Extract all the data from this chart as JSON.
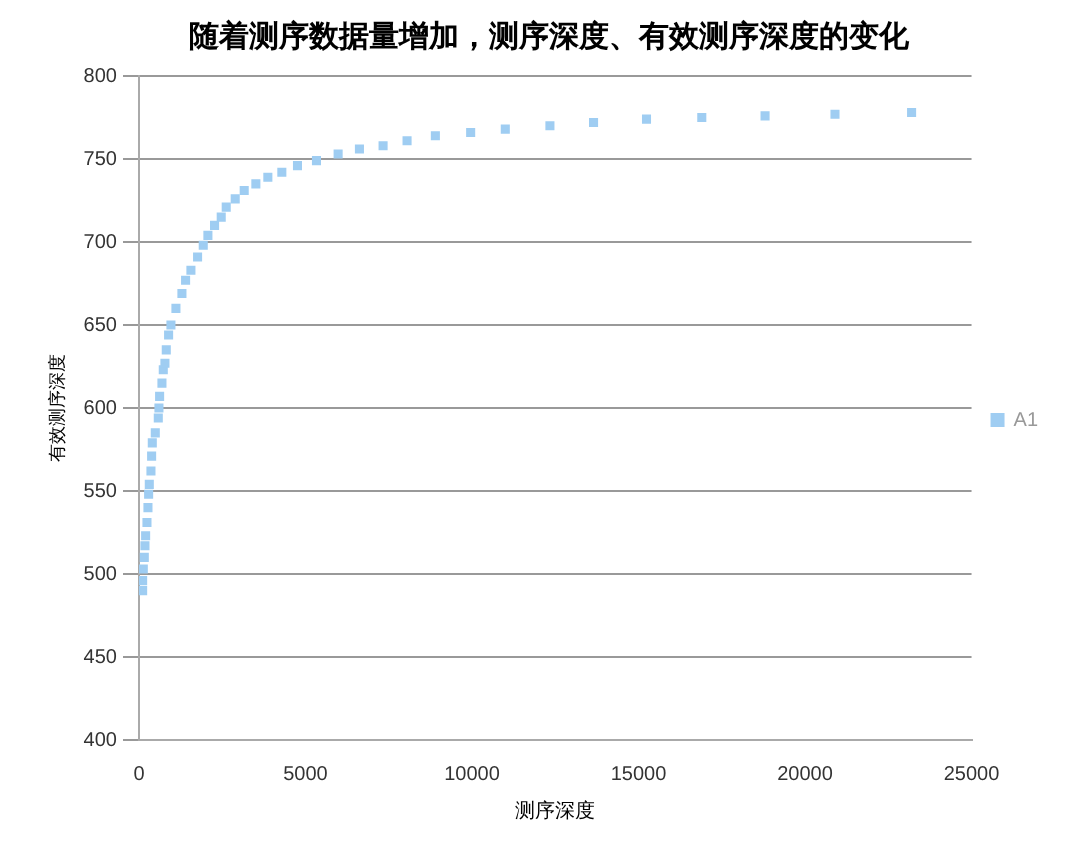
{
  "chart_data": {
    "type": "scatter",
    "title": "随着测序数据量增加，测序深度、有效测序深度的变化",
    "xlabel": "测序深度",
    "ylabel": "有效测序深度",
    "x": [
      110,
      110,
      130,
      160,
      180,
      200,
      240,
      270,
      290,
      310,
      360,
      380,
      400,
      490,
      580,
      600,
      620,
      690,
      730,
      780,
      820,
      890,
      960,
      1110,
      1290,
      1400,
      1560,
      1760,
      1930,
      2070,
      2270,
      2470,
      2620,
      2890,
      3160,
      3510,
      3870,
      4290,
      4760,
      5330,
      5980,
      6620,
      7330,
      8050,
      8900,
      9960,
      11000,
      12340,
      13650,
      15240,
      16900,
      18800,
      20900,
      23200
    ],
    "series": [
      {
        "name": "A1",
        "color": "#9fcdf2",
        "values": [
          490,
          496,
          503,
          510,
          517,
          523,
          531,
          540,
          548,
          554,
          562,
          571,
          579,
          585,
          594,
          600,
          607,
          615,
          623,
          627,
          635,
          644,
          650,
          660,
          669,
          677,
          683,
          691,
          698,
          704,
          710,
          715,
          721,
          726,
          731,
          735,
          739,
          742,
          746,
          749,
          753,
          756,
          758,
          761,
          764,
          766,
          768,
          770,
          772,
          774,
          775,
          776,
          777,
          778
        ]
      }
    ],
    "xlim": [
      0,
      25000
    ],
    "xticks": [
      0,
      5000,
      10000,
      15000,
      20000,
      25000
    ],
    "ylim": [
      400,
      800
    ],
    "yticks": [
      400,
      450,
      500,
      550,
      600,
      650,
      700,
      750,
      800
    ],
    "grid": "y",
    "legend": "right",
    "marker": "square"
  }
}
